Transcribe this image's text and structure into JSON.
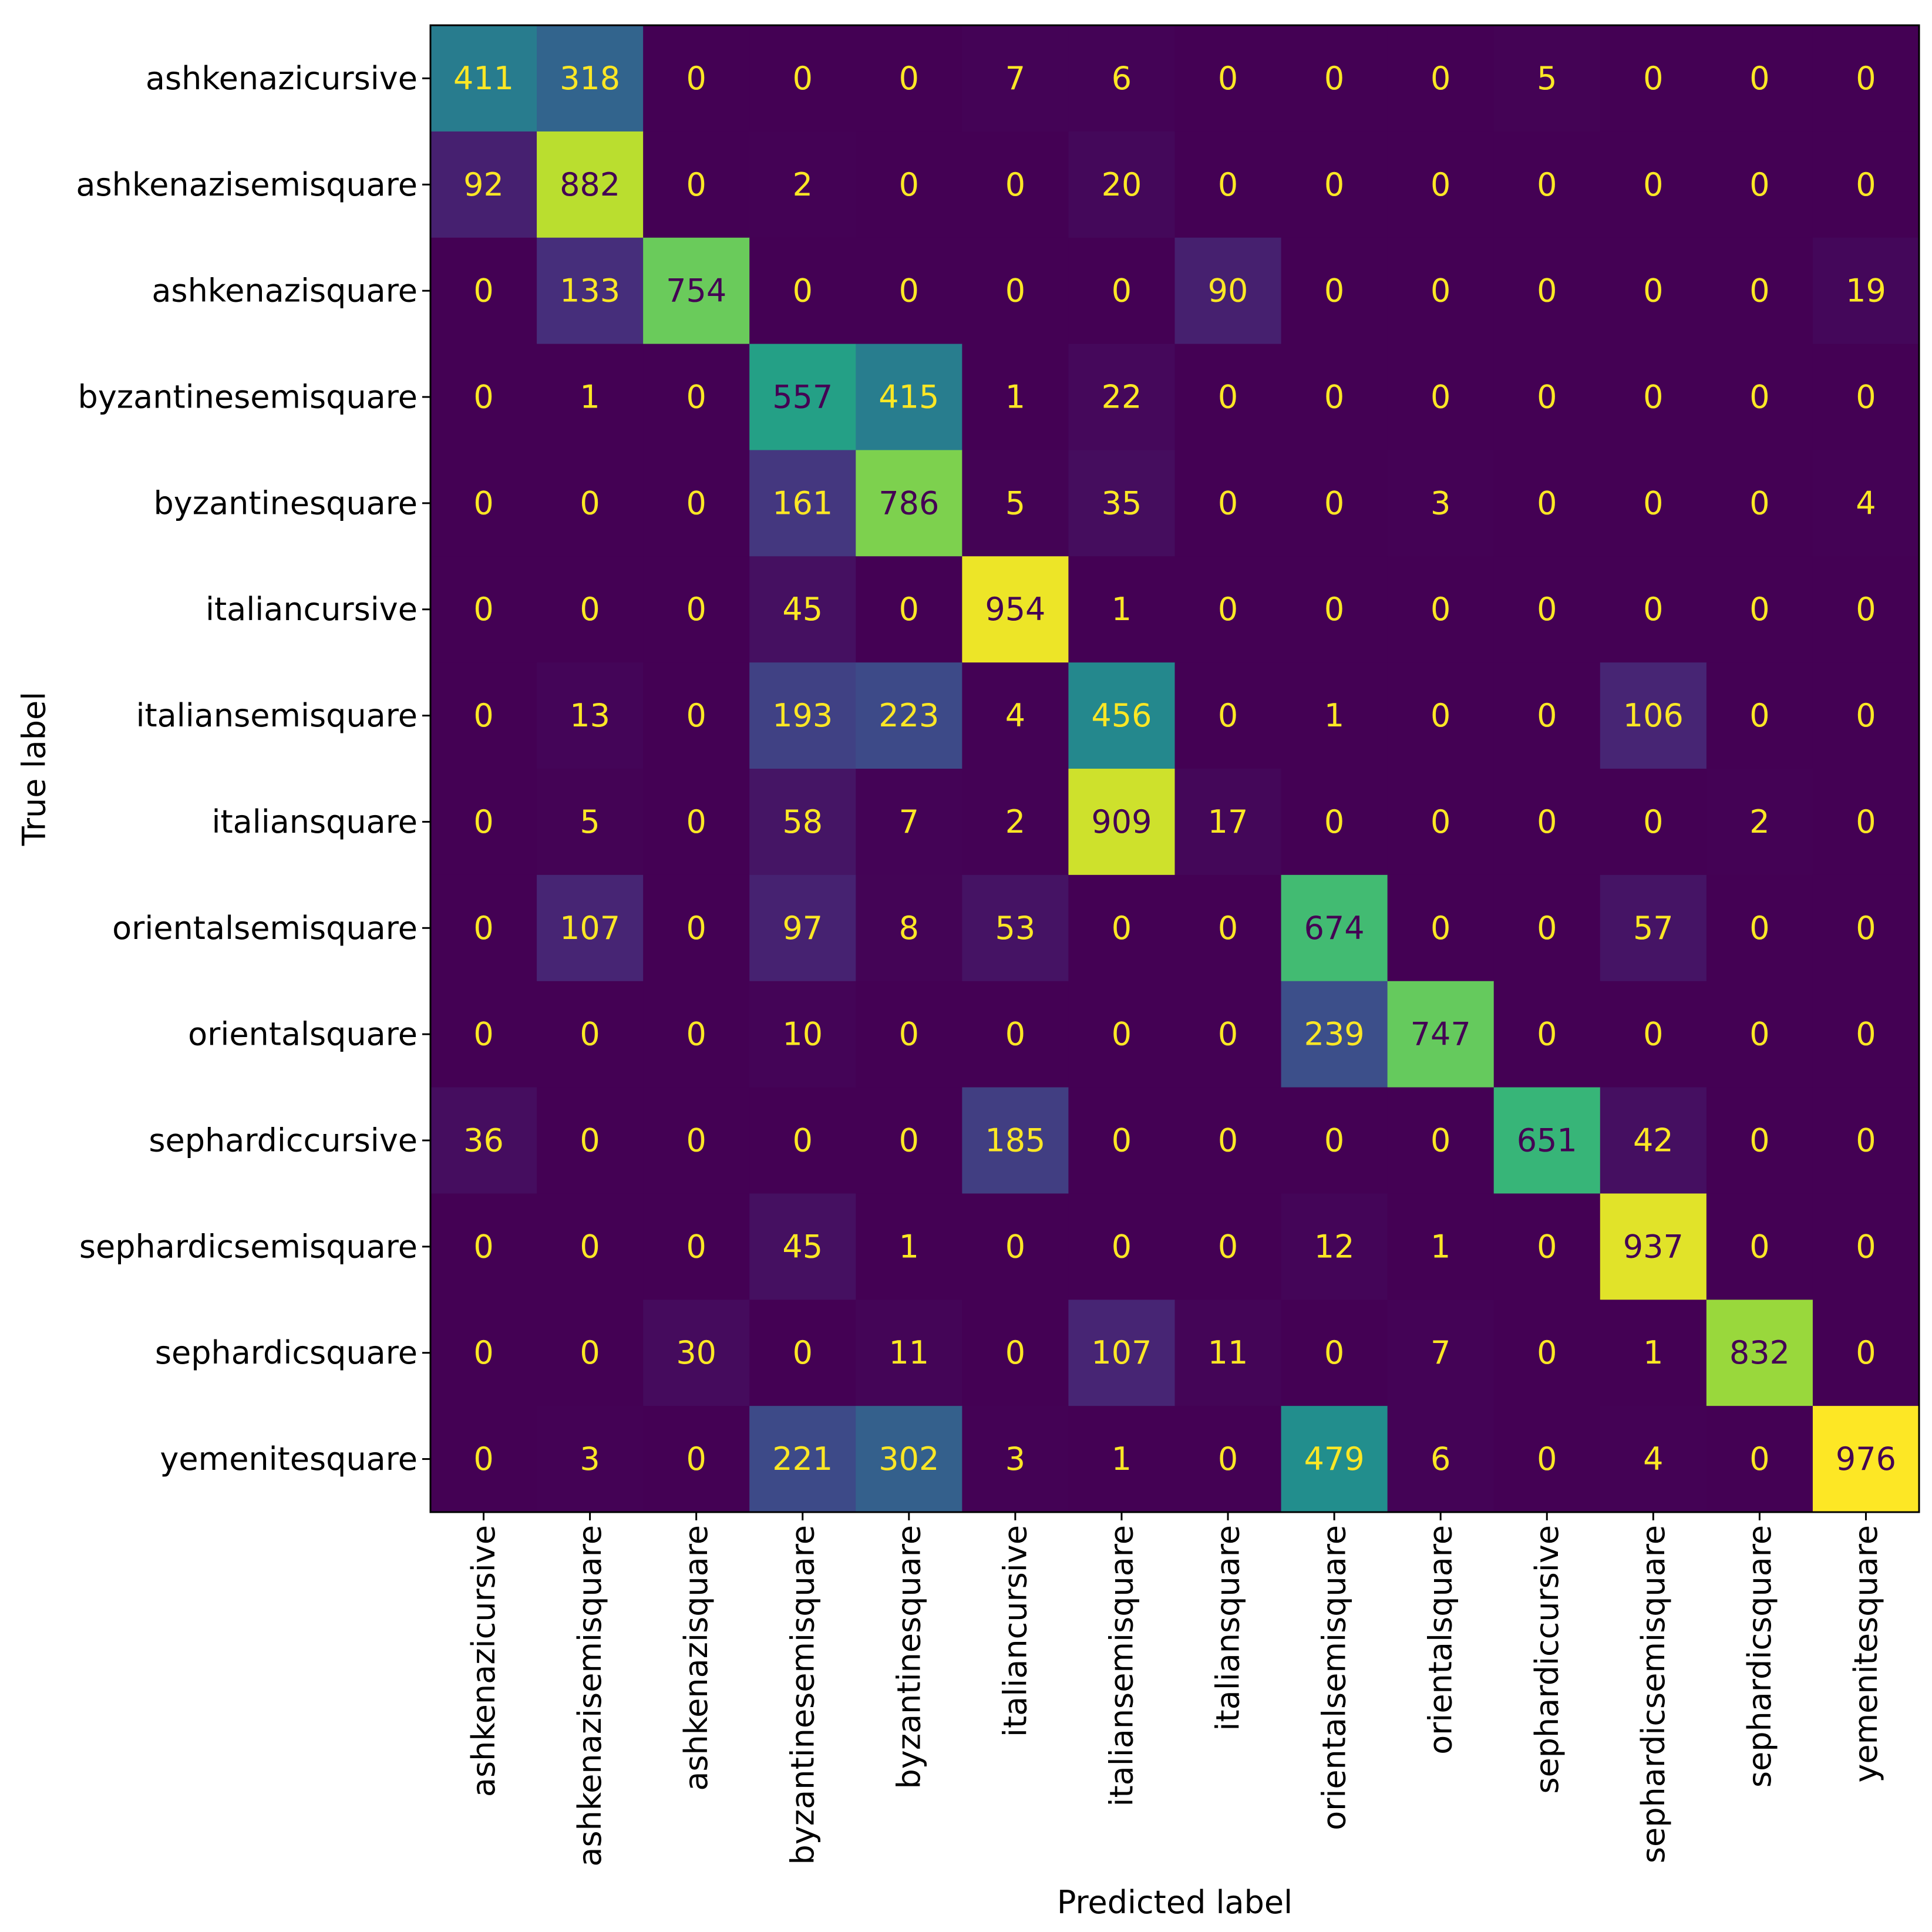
{
  "chart_data": {
    "type": "heatmap",
    "title": "",
    "xlabel": "Predicted label",
    "ylabel": "True label",
    "colormap": "viridis",
    "vmin": 0,
    "vmax": 976,
    "labels": [
      "ashkenazicursive",
      "ashkenazisemisquare",
      "ashkenazisquare",
      "byzantinesemisquare",
      "byzantinesquare",
      "italiancursive",
      "italiansemisquare",
      "italiansquare",
      "orientalsemisquare",
      "orientalsquare",
      "sephardiccursive",
      "sephardicsemisquare",
      "sephardicsquare",
      "yemenitesquare"
    ],
    "matrix": [
      [
        411,
        318,
        0,
        0,
        0,
        7,
        6,
        0,
        0,
        0,
        5,
        0,
        0,
        0
      ],
      [
        92,
        882,
        0,
        2,
        0,
        0,
        20,
        0,
        0,
        0,
        0,
        0,
        0,
        0
      ],
      [
        0,
        133,
        754,
        0,
        0,
        0,
        0,
        90,
        0,
        0,
        0,
        0,
        0,
        19
      ],
      [
        0,
        1,
        0,
        557,
        415,
        1,
        22,
        0,
        0,
        0,
        0,
        0,
        0,
        0
      ],
      [
        0,
        0,
        0,
        161,
        786,
        5,
        35,
        0,
        0,
        3,
        0,
        0,
        0,
        4
      ],
      [
        0,
        0,
        0,
        45,
        0,
        954,
        1,
        0,
        0,
        0,
        0,
        0,
        0,
        0
      ],
      [
        0,
        13,
        0,
        193,
        223,
        4,
        456,
        0,
        1,
        0,
        0,
        106,
        0,
        0
      ],
      [
        0,
        5,
        0,
        58,
        7,
        2,
        909,
        17,
        0,
        0,
        0,
        0,
        2,
        0
      ],
      [
        0,
        107,
        0,
        97,
        8,
        53,
        0,
        0,
        674,
        0,
        0,
        57,
        0,
        0
      ],
      [
        0,
        0,
        0,
        10,
        0,
        0,
        0,
        0,
        239,
        747,
        0,
        0,
        0,
        0
      ],
      [
        36,
        0,
        0,
        0,
        0,
        185,
        0,
        0,
        0,
        0,
        651,
        42,
        0,
        0
      ],
      [
        0,
        0,
        0,
        45,
        1,
        0,
        0,
        0,
        12,
        1,
        0,
        937,
        0,
        0
      ],
      [
        0,
        0,
        30,
        0,
        11,
        0,
        107,
        11,
        0,
        7,
        0,
        1,
        832,
        0
      ],
      [
        0,
        3,
        0,
        221,
        302,
        3,
        1,
        0,
        479,
        6,
        0,
        4,
        0,
        976
      ]
    ],
    "text_color_dark": "#fde725",
    "text_color_light": "#440154"
  }
}
